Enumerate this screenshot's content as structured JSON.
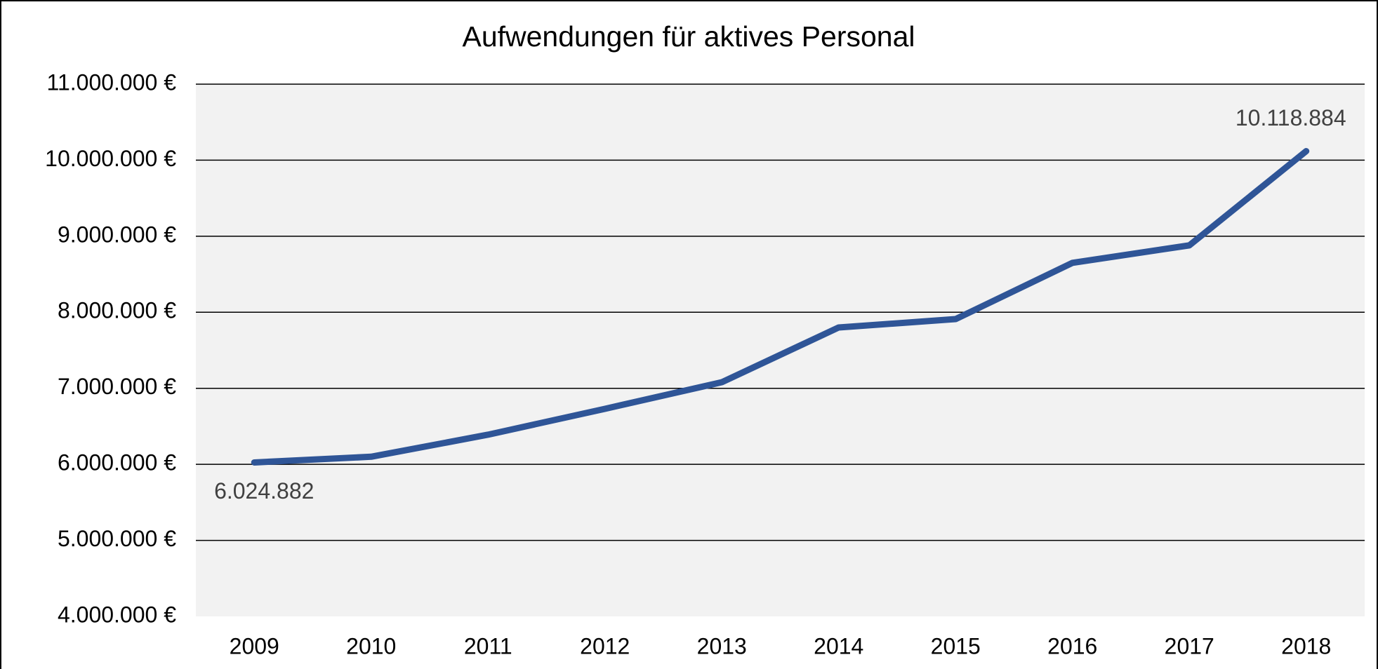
{
  "chart_data": {
    "type": "line",
    "title": "Aufwendungen für aktives Personal",
    "categories": [
      "2009",
      "2010",
      "2011",
      "2012",
      "2013",
      "2014",
      "2015",
      "2016",
      "2017",
      "2018"
    ],
    "series": [
      {
        "name": "Aufwendungen",
        "color": "#2f5597",
        "values": [
          6024882,
          6100000,
          6390000,
          6730000,
          7080000,
          7800000,
          7910000,
          8650000,
          8880000,
          10118884
        ],
        "value_labels": [
          "6.024.882",
          null,
          null,
          null,
          null,
          null,
          null,
          null,
          null,
          "10.118.884"
        ]
      }
    ],
    "ylim": [
      4000000,
      11000000
    ],
    "yticks": [
      {
        "value": 4000000,
        "label": "4.000.000 €"
      },
      {
        "value": 5000000,
        "label": "5.000.000 €"
      },
      {
        "value": 6000000,
        "label": "6.000.000 €"
      },
      {
        "value": 7000000,
        "label": "7.000.000 €"
      },
      {
        "value": 8000000,
        "label": "8.000.000 €"
      },
      {
        "value": 9000000,
        "label": "9.000.000 €"
      },
      {
        "value": 10000000,
        "label": "10.000.000 €"
      },
      {
        "value": 11000000,
        "label": "11.000.000 €"
      }
    ],
    "grid": true
  }
}
